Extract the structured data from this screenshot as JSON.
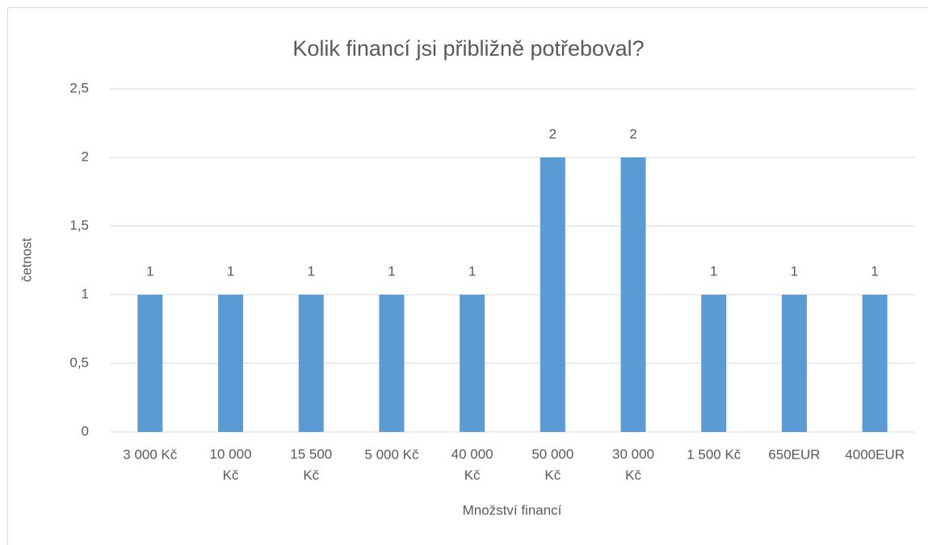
{
  "chart_data": {
    "type": "bar",
    "title": "Kolik financí jsi přibližně potřeboval?",
    "x_label": "Množství financí",
    "y_label": "četnost",
    "categories": [
      "3 000 Kč",
      "10 000 Kč",
      "15 500 Kč",
      "5 000 Kč",
      "40 000 Kč",
      "50 000 Kč",
      "30 000 Kč",
      "1 500 Kč",
      "650EUR",
      "4000EUR"
    ],
    "values": [
      1,
      1,
      1,
      1,
      1,
      2,
      2,
      1,
      1,
      1
    ],
    "color": "#5b9bd5",
    "ylim": [
      0,
      2.5
    ],
    "yticks": [
      0,
      {
        "value": 0.5,
        "label": "0,5"
      },
      1,
      {
        "value": 1.5,
        "label": "1,5"
      },
      2,
      {
        "value": 2.5,
        "label": "2,5"
      }
    ],
    "grid": true
  }
}
